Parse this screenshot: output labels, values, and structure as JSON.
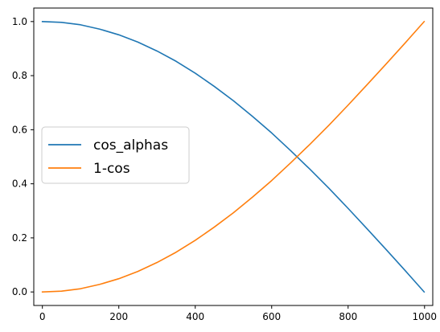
{
  "chart_data": {
    "type": "line",
    "title": "",
    "xlabel": "",
    "ylabel": "",
    "xlim": [
      -22.5,
      1021.5
    ],
    "ylim": [
      -0.05,
      1.05
    ],
    "x_ticks": [
      0,
      200,
      400,
      600,
      800,
      1000
    ],
    "x_tick_labels": [
      "0",
      "200",
      "400",
      "600",
      "800",
      "1000"
    ],
    "y_ticks": [
      0.0,
      0.2,
      0.4,
      0.6,
      0.8,
      1.0
    ],
    "y_tick_labels": [
      "0.0",
      "0.2",
      "0.4",
      "0.6",
      "0.8",
      "1.0"
    ],
    "grid": false,
    "legend_position": "center-left",
    "x": [
      0,
      50,
      100,
      150,
      200,
      250,
      300,
      350,
      400,
      450,
      500,
      550,
      600,
      650,
      700,
      750,
      800,
      850,
      900,
      950,
      999
    ],
    "series": [
      {
        "name": "cos_alphas",
        "color": "#1f77b4",
        "values": [
          1.0,
          0.997,
          0.988,
          0.972,
          0.951,
          0.924,
          0.891,
          0.853,
          0.809,
          0.76,
          0.707,
          0.649,
          0.588,
          0.522,
          0.454,
          0.383,
          0.309,
          0.233,
          0.156,
          0.078,
          0.0
        ]
      },
      {
        "name": "1-cos",
        "color": "#ff7f0e",
        "values": [
          0.0,
          0.003,
          0.012,
          0.028,
          0.049,
          0.076,
          0.109,
          0.147,
          0.191,
          0.24,
          0.293,
          0.351,
          0.412,
          0.478,
          0.546,
          0.617,
          0.691,
          0.767,
          0.844,
          0.922,
          1.0
        ]
      }
    ]
  }
}
